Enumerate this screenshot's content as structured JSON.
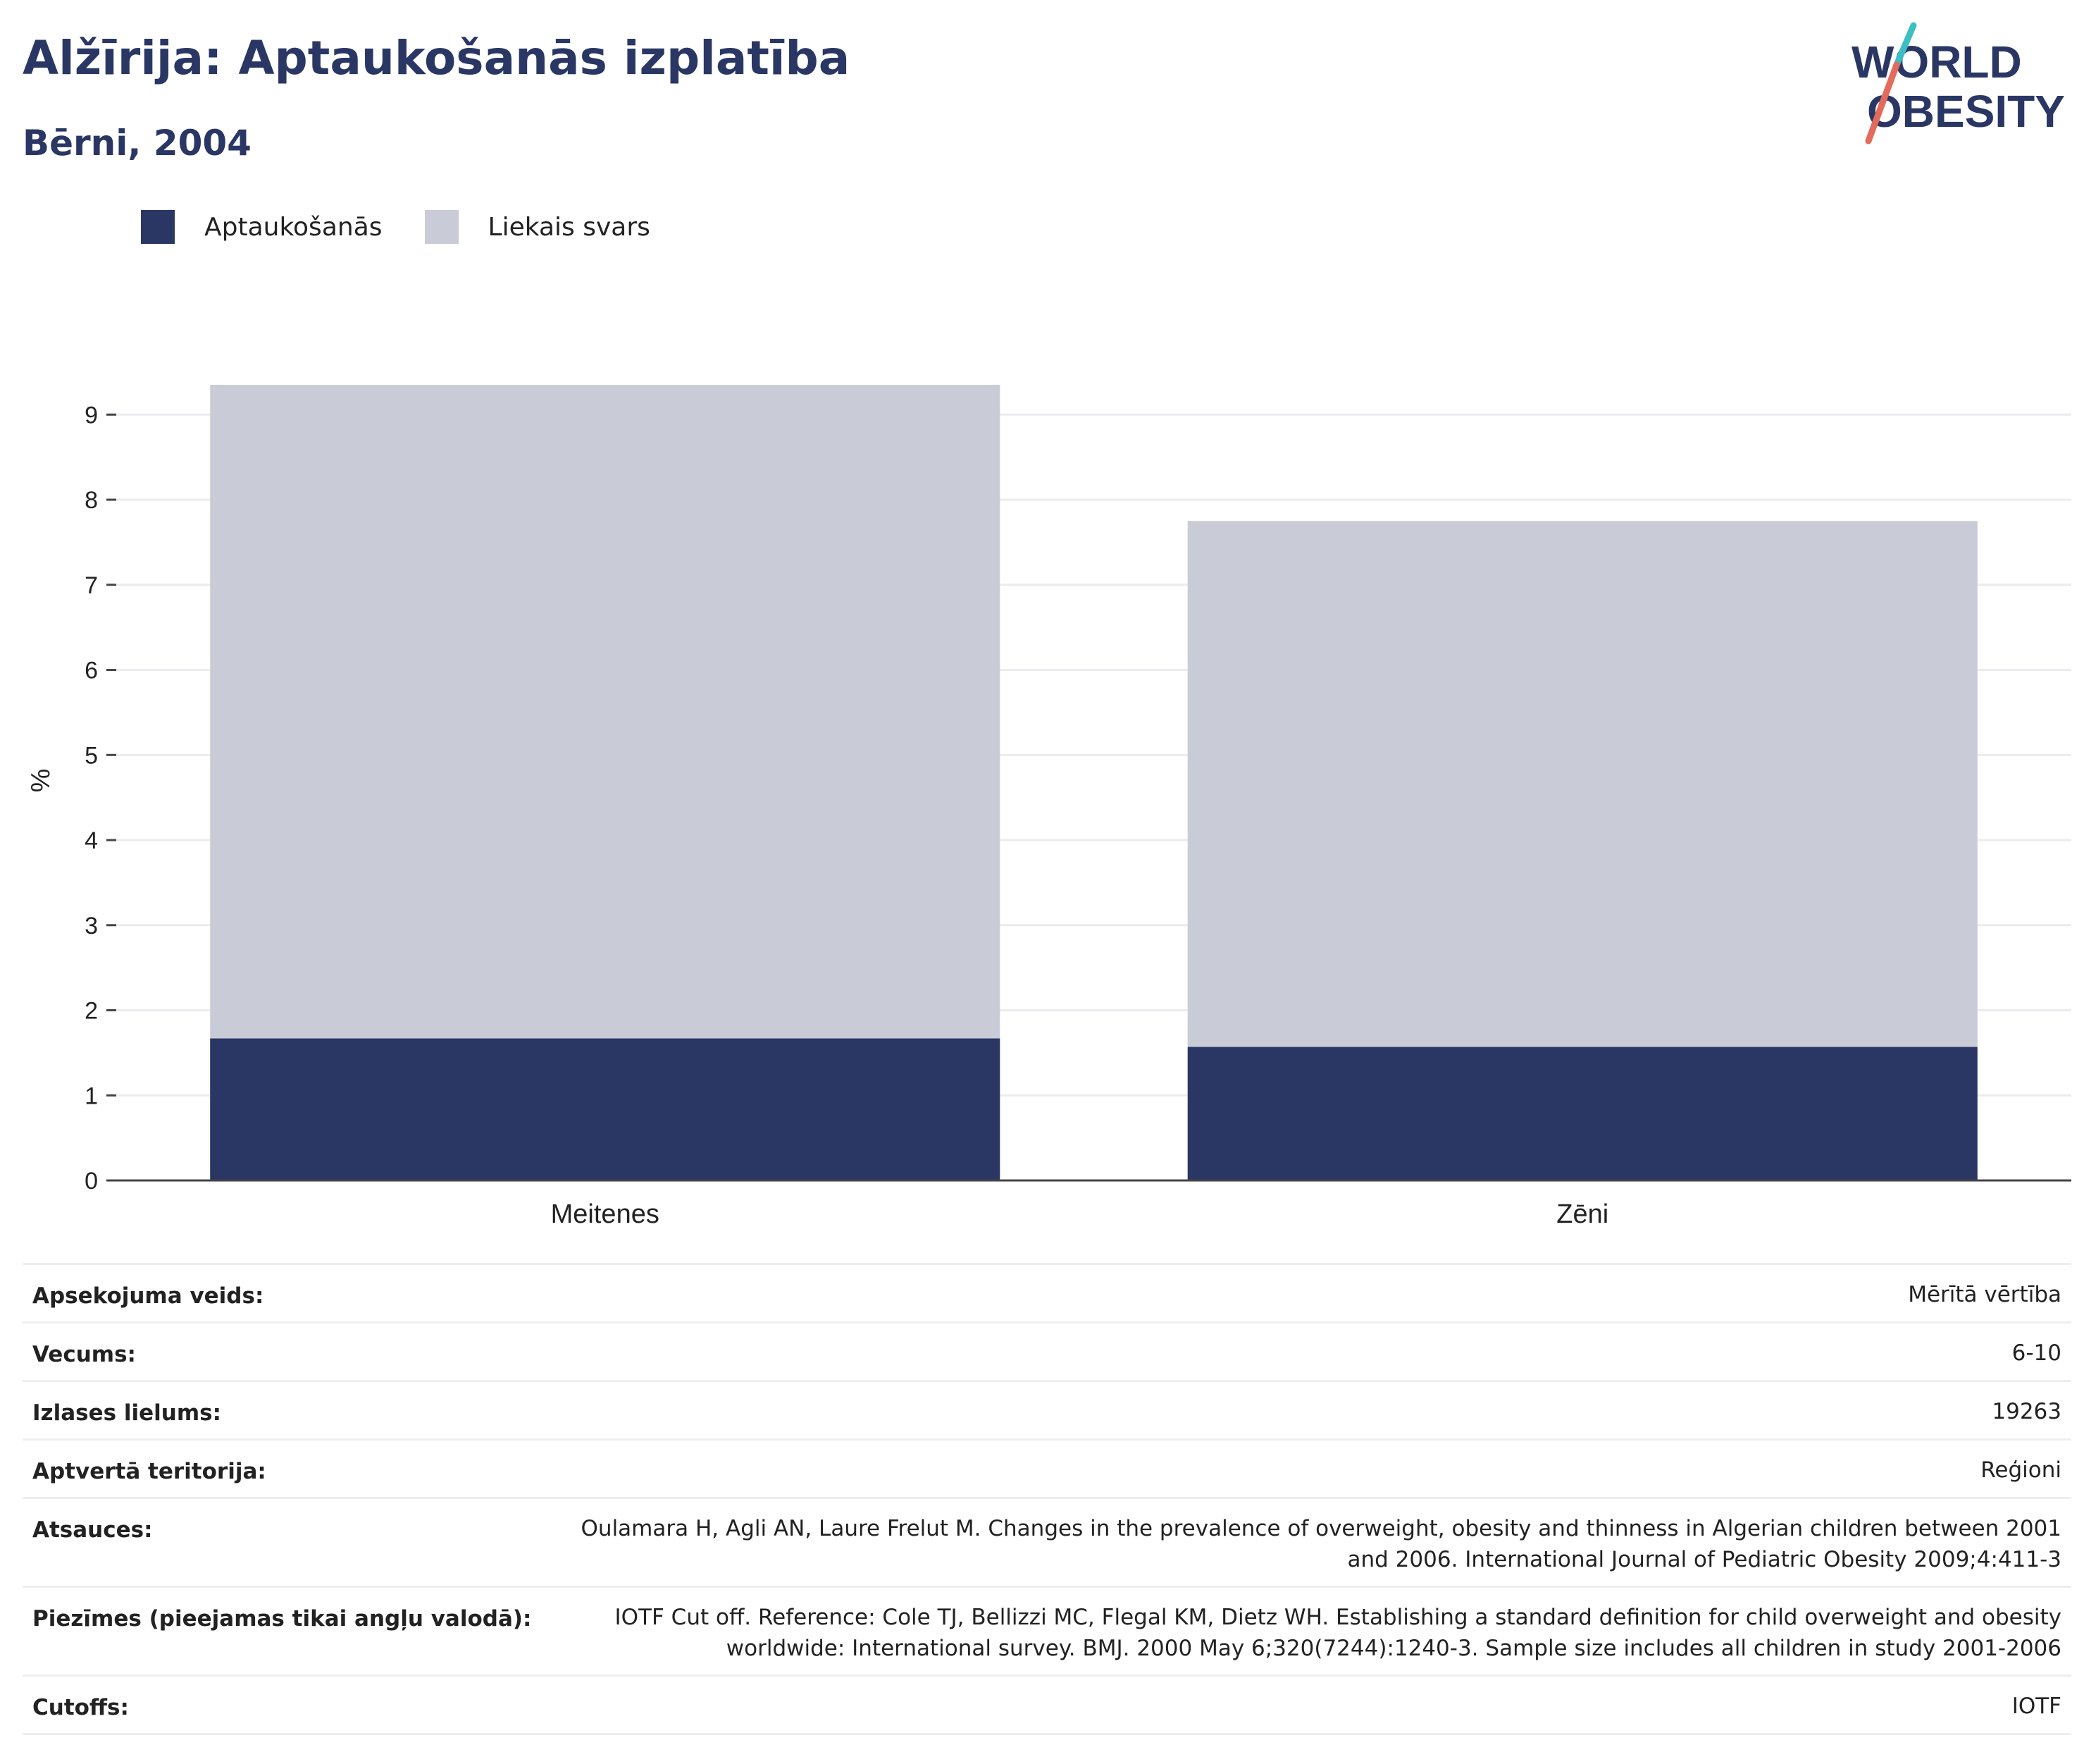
{
  "title": "Alžīrija: Aptaukošanās izplatība",
  "subtitle": "Bērni, 2004",
  "logo": {
    "line1": "WORLD",
    "line2": "OBESITY"
  },
  "colors": {
    "obesity": "#2a3764",
    "overweight": "#c9ccd7",
    "text": "#2a3764"
  },
  "chart_data": {
    "type": "bar",
    "stacked": true,
    "categories": [
      "Meitenes",
      "Zēni"
    ],
    "series": [
      {
        "name": "Aptaukošanās",
        "values": [
          1.67,
          1.57
        ]
      },
      {
        "name": "Liekais svars",
        "values": [
          7.68,
          6.18
        ]
      }
    ],
    "ylabel": "%",
    "ylim": [
      0,
      9.4
    ],
    "yticks": [
      0,
      1,
      2,
      3,
      4,
      5,
      6,
      7,
      8,
      9
    ],
    "grid": true,
    "legend": "top-left"
  },
  "info": [
    {
      "key": "Apsekojuma veids:",
      "value": "Mērītā vērtība"
    },
    {
      "key": "Vecums:",
      "value": "6-10"
    },
    {
      "key": "Izlases lielums:",
      "value": "19263"
    },
    {
      "key": "Aptvertā teritorija:",
      "value": "Reģioni"
    },
    {
      "key": "Atsauces:",
      "value": "Oulamara H, Agli AN, Laure Frelut M. Changes in the prevalence of overweight, obesity and thinness in Algerian children between 2001 and 2006. International Journal of Pediatric Obesity 2009;4:411-3"
    },
    {
      "key": "Piezīmes (pieejamas tikai angļu valodā):",
      "value": "IOTF Cut off. Reference: Cole TJ, Bellizzi MC, Flegal KM, Dietz WH. Establishing a standard definition for child overweight and obesity worldwide: International survey. BMJ. 2000 May 6;320(7244):1240-3. Sample size includes all children in study 2001-2006"
    },
    {
      "key": "Cutoffs:",
      "value": "IOTF"
    }
  ]
}
